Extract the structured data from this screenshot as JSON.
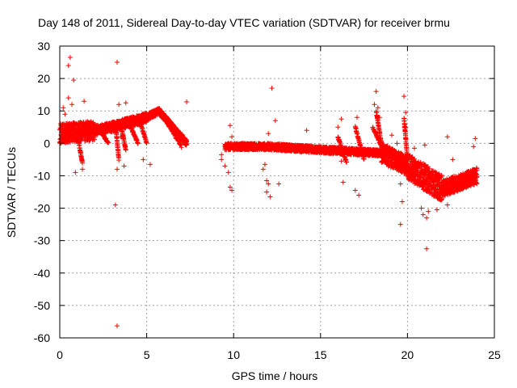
{
  "chart_data": {
    "type": "scatter",
    "title": "Day 148 of 2011, Sidereal Day-to-day VTEC variation (SDTVAR) for receiver brmu",
    "xlabel": "GPS time / hours",
    "ylabel": "SDTVAR / TECUs",
    "xlim": [
      0,
      25
    ],
    "ylim": [
      -60,
      30
    ],
    "xticks": [
      0,
      5,
      10,
      15,
      20,
      25
    ],
    "yticks": [
      30,
      20,
      10,
      0,
      -10,
      -20,
      -30,
      -40,
      -50,
      -60
    ],
    "xtick_labels": [
      "0",
      "5",
      "10",
      "15",
      "20",
      "25"
    ],
    "ytick_labels": [
      "30",
      "20",
      "10",
      "0",
      "-10",
      "-20",
      "-30",
      "-40",
      "-50",
      "-60"
    ],
    "grid": true,
    "marker": "+",
    "color": "#ff0000",
    "band_segments": [
      {
        "from": [
          0.0,
          3.0
        ],
        "to": [
          2.0,
          4.0
        ],
        "spread": 6
      },
      {
        "from": [
          2.0,
          4.0
        ],
        "to": [
          3.0,
          5.0
        ],
        "spread": 3
      },
      {
        "from": [
          3.0,
          5.0
        ],
        "to": [
          5.0,
          8.0
        ],
        "spread": 3
      },
      {
        "from": [
          5.0,
          8.0
        ],
        "to": [
          5.7,
          10.0
        ],
        "spread": 2
      },
      {
        "from": [
          5.7,
          10.0
        ],
        "to": [
          7.3,
          0.0
        ],
        "spread": 2
      },
      {
        "from": [
          9.5,
          -1.0
        ],
        "to": [
          12.0,
          -1.0
        ],
        "spread": 2
      },
      {
        "from": [
          12.0,
          -1.0
        ],
        "to": [
          15.0,
          -2.0
        ],
        "spread": 2
      },
      {
        "from": [
          15.0,
          -2.0
        ],
        "to": [
          18.5,
          -3.0
        ],
        "spread": 2
      },
      {
        "from": [
          18.5,
          -3.0
        ],
        "to": [
          20.0,
          -7.0
        ],
        "spread": 6
      },
      {
        "from": [
          20.0,
          -7.0
        ],
        "to": [
          22.0,
          -14.0
        ],
        "spread": 8
      },
      {
        "from": [
          22.0,
          -14.0
        ],
        "to": [
          24.0,
          -10.0
        ],
        "spread": 5
      }
    ],
    "streaks": [
      {
        "from": [
          3.2,
          6.0
        ],
        "to": [
          3.4,
          -5.0
        ]
      },
      {
        "from": [
          3.5,
          6.0
        ],
        "to": [
          3.8,
          -2.0
        ]
      },
      {
        "from": [
          4.0,
          6.0
        ],
        "to": [
          4.5,
          0.0
        ]
      },
      {
        "from": [
          4.6,
          7.0
        ],
        "to": [
          5.0,
          0.0
        ]
      },
      {
        "from": [
          2.2,
          5.0
        ],
        "to": [
          2.8,
          0.0
        ]
      },
      {
        "from": [
          1.0,
          3.0
        ],
        "to": [
          1.3,
          -6.0
        ]
      },
      {
        "from": [
          6.0,
          8.0
        ],
        "to": [
          7.0,
          -1.0
        ]
      },
      {
        "from": [
          16.0,
          2.0
        ],
        "to": [
          16.5,
          -6.0
        ]
      },
      {
        "from": [
          17.0,
          5.0
        ],
        "to": [
          17.5,
          -5.0
        ]
      },
      {
        "from": [
          18.0,
          5.0
        ],
        "to": [
          18.6,
          -2.0
        ]
      },
      {
        "from": [
          18.2,
          10.0
        ],
        "to": [
          18.5,
          0.0
        ]
      },
      {
        "from": [
          19.8,
          8.0
        ],
        "to": [
          20.0,
          -5.0
        ]
      }
    ],
    "outliers": [
      {
        "x": 0.6,
        "y": 26.5
      },
      {
        "x": 0.5,
        "y": 24.0
      },
      {
        "x": 0.8,
        "y": 19.5
      },
      {
        "x": 0.5,
        "y": 14.0
      },
      {
        "x": 0.7,
        "y": 12.0
      },
      {
        "x": 1.4,
        "y": 13.0
      },
      {
        "x": 0.2,
        "y": 11.0
      },
      {
        "x": 0.3,
        "y": 9.0
      },
      {
        "x": 0.9,
        "y": -9.0
      },
      {
        "x": 1.3,
        "y": -8.0
      },
      {
        "x": 3.3,
        "y": 25.0
      },
      {
        "x": 3.4,
        "y": 12.0
      },
      {
        "x": 3.8,
        "y": 12.5
      },
      {
        "x": 3.2,
        "y": -19.0
      },
      {
        "x": 3.3,
        "y": -56.3
      },
      {
        "x": 3.3,
        "y": -8.0
      },
      {
        "x": 3.7,
        "y": -7.0
      },
      {
        "x": 3.5,
        "y": 2.0
      },
      {
        "x": 4.8,
        "y": -5.0
      },
      {
        "x": 5.2,
        "y": -6.5
      },
      {
        "x": 7.3,
        "y": 12.8
      },
      {
        "x": 9.3,
        "y": -5.0
      },
      {
        "x": 9.5,
        "y": -7.0
      },
      {
        "x": 9.8,
        "y": 5.5
      },
      {
        "x": 9.9,
        "y": 2.0
      },
      {
        "x": 9.7,
        "y": -9.0
      },
      {
        "x": 9.8,
        "y": -13.5
      },
      {
        "x": 9.9,
        "y": -14.5
      },
      {
        "x": 9.3,
        "y": -3.5
      },
      {
        "x": 11.8,
        "y": -6.5
      },
      {
        "x": 11.9,
        "y": -11.5
      },
      {
        "x": 12.0,
        "y": -12.5
      },
      {
        "x": 11.9,
        "y": -15.0
      },
      {
        "x": 12.1,
        "y": -16.5
      },
      {
        "x": 12.2,
        "y": 17.0
      },
      {
        "x": 12.4,
        "y": 7.0
      },
      {
        "x": 11.7,
        "y": -8.0
      },
      {
        "x": 12.6,
        "y": -12.5
      },
      {
        "x": 12.0,
        "y": 3.0
      },
      {
        "x": 14.2,
        "y": 4.0
      },
      {
        "x": 16.2,
        "y": -5.5
      },
      {
        "x": 16.2,
        "y": 7.5
      },
      {
        "x": 16.3,
        "y": -12.0
      },
      {
        "x": 16.0,
        "y": 5.0
      },
      {
        "x": 17.1,
        "y": 8.0
      },
      {
        "x": 17.0,
        "y": -14.5
      },
      {
        "x": 17.2,
        "y": -16.0
      },
      {
        "x": 18.2,
        "y": 16.0
      },
      {
        "x": 18.1,
        "y": 12.0
      },
      {
        "x": 18.3,
        "y": 11.0
      },
      {
        "x": 18.4,
        "y": 8.0
      },
      {
        "x": 19.1,
        "y": 2.5
      },
      {
        "x": 19.4,
        "y": 0.0
      },
      {
        "x": 19.6,
        "y": -12.5
      },
      {
        "x": 19.7,
        "y": -18.0
      },
      {
        "x": 19.6,
        "y": -25.0
      },
      {
        "x": 19.8,
        "y": 14.5
      },
      {
        "x": 19.9,
        "y": 9.5
      },
      {
        "x": 19.9,
        "y": 5.0
      },
      {
        "x": 20.4,
        "y": -1.5
      },
      {
        "x": 21.0,
        "y": -0.5
      },
      {
        "x": 20.8,
        "y": -20.0
      },
      {
        "x": 20.9,
        "y": -22.0
      },
      {
        "x": 21.1,
        "y": -23.0
      },
      {
        "x": 21.2,
        "y": -21.0
      },
      {
        "x": 21.1,
        "y": -32.5
      },
      {
        "x": 21.7,
        "y": -20.5
      },
      {
        "x": 22.3,
        "y": -19.0
      },
      {
        "x": 22.3,
        "y": 2.0
      },
      {
        "x": 22.6,
        "y": -5.0
      },
      {
        "x": 23.9,
        "y": 1.5
      },
      {
        "x": 23.8,
        "y": -1.0
      }
    ]
  }
}
